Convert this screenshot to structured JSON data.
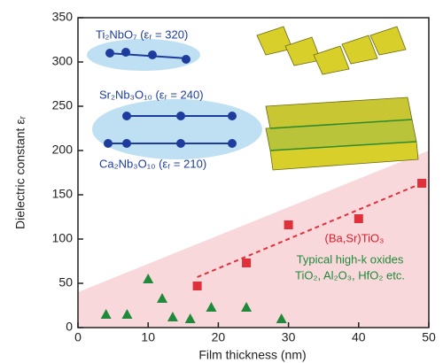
{
  "chart_data": {
    "type": "scatter",
    "xlabel": "Film thickness (nm)",
    "ylabel": "Dielectric constant εᵣ",
    "xlim": [
      0,
      50
    ],
    "ylim": [
      0,
      350
    ],
    "xticks": [
      0,
      10,
      20,
      30,
      40,
      50
    ],
    "yticks": [
      0,
      50,
      100,
      150,
      200,
      250,
      300,
      350
    ],
    "series": [
      {
        "name": "(Ba,Sr)TiO₃",
        "color": "#e0303a",
        "marker": "square",
        "x": [
          17,
          24,
          30,
          40,
          49
        ],
        "values": [
          47,
          73,
          116,
          123,
          163
        ]
      },
      {
        "name": "Typical high-k oxides",
        "color": "#1e8a3a",
        "marker": "triangle",
        "x": [
          4,
          7,
          10,
          12,
          13.5,
          16,
          19,
          24,
          29
        ],
        "values": [
          15,
          15,
          55,
          33,
          12,
          10,
          23,
          23,
          10
        ]
      }
    ],
    "trend": {
      "x": [
        17,
        49
      ],
      "values": [
        57,
        163
      ],
      "color": "#e0303a"
    },
    "region": {
      "x": [
        0,
        50
      ],
      "values": [
        40,
        200
      ],
      "color": "#f9d8db"
    },
    "annotations": [
      "TiO₂, Al₂O₃, HfO₂ etc.",
      "Ti₂NbO₇  (εᵣ = 320)",
      "Sr₂Nb₃O₁₀  (εᵣ = 240)",
      "Ca₂Nb₃O₁₀  (εᵣ = 210)"
    ]
  }
}
